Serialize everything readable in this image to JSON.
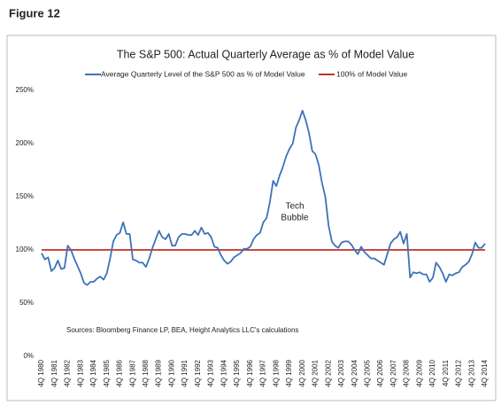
{
  "figure_label": "Figure 12",
  "chart_data": {
    "type": "line",
    "title": "The S&P 500: Actual Quarterly Average as % of Model Value",
    "annotations": [
      "Tech",
      "Bubble",
      "Sources: Bloomberg Finance LP, BEA, Height Analytics LLC's calculations"
    ],
    "categories": [
      "4Q 1980",
      null,
      null,
      null,
      "4Q 1981",
      null,
      null,
      null,
      "4Q 1982",
      null,
      null,
      null,
      "4Q 1983",
      null,
      null,
      null,
      "4Q 1984",
      null,
      null,
      null,
      "4Q 1985",
      null,
      null,
      null,
      "4Q 1986",
      null,
      null,
      null,
      "4Q 1987",
      null,
      null,
      null,
      "4Q 1988",
      null,
      null,
      null,
      "4Q 1989",
      null,
      null,
      null,
      "4Q 1990",
      null,
      null,
      null,
      "4Q 1991",
      null,
      null,
      null,
      "4Q 1992",
      null,
      null,
      null,
      "4Q 1993",
      null,
      null,
      null,
      "4Q 1994",
      null,
      null,
      null,
      "4Q 1995",
      null,
      null,
      null,
      "4Q 1996",
      null,
      null,
      null,
      "4Q 1997",
      null,
      null,
      null,
      "4Q 1998",
      null,
      null,
      null,
      "4Q 1999",
      null,
      null,
      null,
      "4Q 2000",
      null,
      null,
      null,
      "4Q 2001",
      null,
      null,
      null,
      "4Q 2002",
      null,
      null,
      null,
      "4Q 2003",
      null,
      null,
      null,
      "4Q 2004",
      null,
      null,
      null,
      "4Q 2005",
      null,
      null,
      null,
      "4Q 2006",
      null,
      null,
      null,
      "4Q 2007",
      null,
      null,
      null,
      "4Q 2008",
      null,
      null,
      null,
      "4Q 2009",
      null,
      null,
      null,
      "4Q 2010",
      null,
      null,
      null,
      "4Q 2011",
      null,
      null,
      null,
      "4Q 2012",
      null,
      null,
      null,
      "4Q 2013",
      null,
      null,
      null,
      "4Q 2014"
    ],
    "series": [
      {
        "name": "Average Quarterly Level of the S&P 500 as % of Model Value",
        "color": "#3d72b8",
        "values": [
          97,
          91,
          93,
          80,
          83,
          90,
          82,
          83,
          104,
          100,
          92,
          85,
          78,
          69,
          67,
          70,
          70,
          73,
          75,
          72,
          78,
          92,
          108,
          114,
          116,
          126,
          115,
          115,
          91,
          90,
          88,
          88,
          84,
          92,
          102,
          110,
          118,
          112,
          110,
          115,
          104,
          104,
          112,
          115,
          115,
          114,
          114,
          118,
          114,
          121,
          115,
          116,
          112,
          103,
          102,
          95,
          90,
          87,
          89,
          93,
          95,
          97,
          101,
          101,
          103,
          110,
          114,
          116,
          126,
          130,
          145,
          165,
          160,
          170,
          178,
          188,
          195,
          200,
          215,
          222,
          231,
          222,
          210,
          193,
          190,
          180,
          163,
          150,
          123,
          108,
          104,
          102,
          107,
          108,
          108,
          105,
          100,
          96,
          103,
          98,
          95,
          92,
          92,
          90,
          88,
          86,
          96,
          106,
          110,
          112,
          117,
          106,
          115,
          74,
          79,
          78,
          79,
          77,
          77,
          70,
          74,
          88,
          84,
          78,
          70,
          77,
          76,
          78,
          79,
          84,
          86,
          89,
          96,
          107,
          102,
          102,
          106
        ]
      }
    ],
    "reference_line": {
      "name": "100% of Model Value",
      "value": 100,
      "color": "#c0302a"
    },
    "ylim": [
      0,
      250
    ],
    "yticks": [
      {
        "value": 0,
        "label": "0%"
      },
      {
        "value": 50,
        "label": "50%"
      },
      {
        "value": 100,
        "label": "100%"
      },
      {
        "value": 150,
        "label": "150%"
      },
      {
        "value": 200,
        "label": "200%"
      },
      {
        "value": 250,
        "label": "250%"
      }
    ],
    "grid": false
  }
}
